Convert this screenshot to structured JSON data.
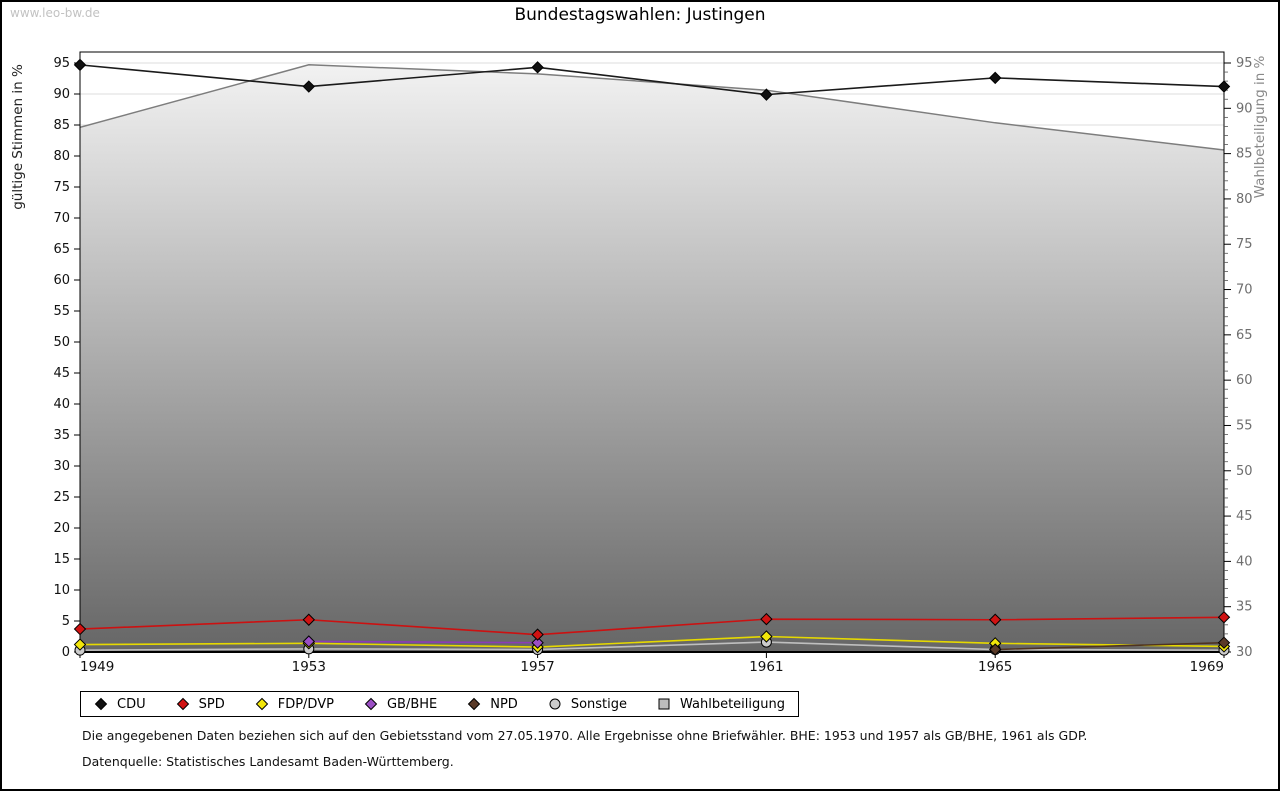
{
  "watermark": "www.leo-bw.de",
  "title": "Bundestagswahlen: Justingen",
  "footnotes": [
    "Die angegebenen Daten beziehen sich auf den Gebietsstand vom 27.05.1970. Alle Ergebnisse ohne Briefwähler. BHE: 1953 und 1957 als GB/BHE, 1961 als GDP.",
    "Datenquelle: Statistisches Landesamt Baden-Württemberg."
  ],
  "chart_data": {
    "type": "line",
    "x": [
      1949,
      1953,
      1957,
      1961,
      1965,
      1969
    ],
    "left_axis": {
      "label": "gültige Stimmen in %",
      "min": 0,
      "max": 95,
      "step": 5
    },
    "right_axis": {
      "label": "Wahlbeteiligung in %",
      "min": 30,
      "max": 95,
      "step": 5
    },
    "grid": "horizontal-light",
    "legend_position": "bottom",
    "series": [
      {
        "name": "CDU",
        "axis": "left",
        "marker": "diamond",
        "color": "#111111",
        "line": "#1a1a1a",
        "values": [
          94.7,
          91.2,
          94.3,
          89.9,
          92.6,
          91.2
        ]
      },
      {
        "name": "SPD",
        "axis": "left",
        "marker": "diamond",
        "color": "#d01212",
        "line": "#cc1111",
        "values": [
          3.7,
          5.2,
          2.8,
          5.3,
          5.2,
          5.6
        ]
      },
      {
        "name": "FDP/DVP",
        "axis": "left",
        "marker": "diamond",
        "color": "#f2e60a",
        "line": "#e6d900",
        "values": [
          1.2,
          1.4,
          0.8,
          2.5,
          1.4,
          0.9
        ]
      },
      {
        "name": "GB/BHE",
        "axis": "left",
        "marker": "diamond",
        "color": "#9b4fc4",
        "line": "#8b3bb8",
        "values": [
          null,
          1.7,
          1.5,
          null,
          null,
          null
        ]
      },
      {
        "name": "NPD",
        "axis": "left",
        "marker": "diamond",
        "color": "#5a3a28",
        "line": "#4e3322",
        "values": [
          null,
          null,
          null,
          null,
          0.4,
          1.5
        ]
      },
      {
        "name": "Sonstige",
        "axis": "left",
        "marker": "circle",
        "color": "#cccccc",
        "line": "#bfbfbf",
        "values": [
          0.3,
          0.5,
          0.4,
          1.6,
          0.4,
          0.3
        ]
      },
      {
        "name": "Wahlbeteiligung",
        "axis": "right",
        "marker": "square",
        "color": "#bdbdbd",
        "line": "#7d7d7d",
        "area": true,
        "area_gradient": [
          "#f2f2f2",
          "#666666"
        ],
        "values": [
          87.9,
          94.8,
          93.8,
          92.0,
          88.4,
          85.4
        ]
      }
    ]
  }
}
